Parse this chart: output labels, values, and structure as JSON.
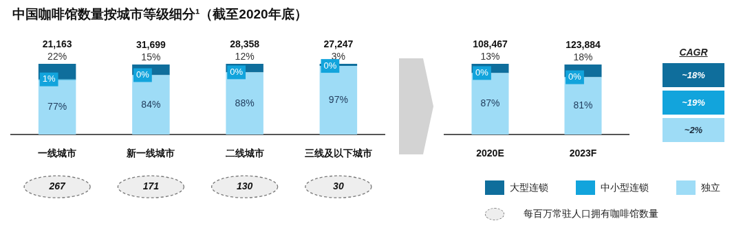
{
  "chart_data": [
    {
      "type": "bar",
      "title": "中国咖啡馆数量按城市等级细分¹（截至2020年底）",
      "stacked": true,
      "legend": "bottom right",
      "categories": [
        "一线城市",
        "新一线城市",
        "二线城市",
        "三线及以下城市"
      ],
      "series": [
        {
          "name": "独立",
          "color": "#9edcf6",
          "values": [
            77,
            84,
            88,
            97
          ],
          "value_labels": [
            "77%",
            "84%",
            "88%",
            "97%"
          ]
        },
        {
          "name": "中小型连锁",
          "color": "#12a4dc",
          "values": [
            1,
            0,
            0,
            0
          ],
          "value_labels": [
            "1%",
            null,
            null,
            null
          ]
        },
        {
          "name": "大型连锁",
          "color": "#0f6e9c",
          "values": [
            22,
            15,
            12,
            3
          ],
          "value_labels": [
            "22%",
            "15%",
            "12%",
            "3%"
          ]
        }
      ],
      "annotations": [
        "21,163",
        "31,699",
        "28,358",
        "27,247",
        "267",
        "171",
        "130",
        "30",
        "每百万常驻人口拥有咖啡馆数量",
        {
          "text": "0%",
          "x": "新一线城市",
          "y": 84
        },
        {
          "text": "0%",
          "x": "二线城市",
          "y": 88
        },
        {
          "text": "0%",
          "x": "三线及以下城市",
          "y": 97
        }
      ]
    },
    {
      "type": "bar",
      "stacked": true,
      "categories": [
        "2020E",
        "2023F"
      ],
      "series": [
        {
          "color": "#9edcf6",
          "values": [
            87,
            81
          ],
          "value_labels": [
            "87%",
            "81%"
          ]
        },
        {
          "color": "#12a4dc",
          "values": [
            0,
            0
          ],
          "value_labels": [
            null,
            null
          ]
        },
        {
          "color": "#0f6e9c",
          "values": [
            13,
            18
          ],
          "value_labels": [
            "13%",
            "18%"
          ]
        }
      ],
      "annotations": [
        "108,467",
        "123,884",
        {
          "text": "0%",
          "x": "2020E",
          "y": 87
        },
        {
          "text": "0%",
          "x": "2023F",
          "y": 81
        }
      ]
    },
    {
      "type": "other",
      "title": "CAGR",
      "annotations": [
        "~18%",
        "~19%",
        "~2%"
      ],
      "colors": [
        "#0f6e9c",
        "#12a4dc",
        "#9edcf6"
      ]
    }
  ]
}
